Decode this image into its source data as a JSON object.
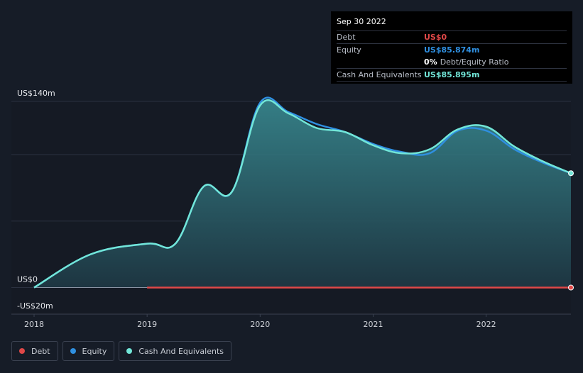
{
  "colors": {
    "debt": "#e04848",
    "equity": "#2f8fe0",
    "cash": "#72e6d8",
    "grid": "#2b3140"
  },
  "tooltip": {
    "date": "Sep 30 2022",
    "debt_label": "Debt",
    "debt_value": "US$0",
    "equity_label": "Equity",
    "equity_value": "US$85.874m",
    "ratio_value": "0%",
    "ratio_label": "Debt/Equity Ratio",
    "cash_label": "Cash And Equivalents",
    "cash_value": "US$85.895m"
  },
  "legend": {
    "debt": "Debt",
    "equity": "Equity",
    "cash": "Cash And Equivalents"
  },
  "chart_data": {
    "type": "area",
    "title": "",
    "xlabel": "",
    "ylabel": "",
    "xlim": [
      2018.0,
      2022.75
    ],
    "ylim": [
      -20,
      140
    ],
    "y_tick_labels": [
      {
        "value": 140,
        "label": "US$140m"
      },
      {
        "value": 0,
        "label": "US$0"
      },
      {
        "value": -20,
        "label": "-US$20m"
      }
    ],
    "x_tick_labels": [
      {
        "value": 2018,
        "label": "2018"
      },
      {
        "value": 2019,
        "label": "2019"
      },
      {
        "value": 2020,
        "label": "2020"
      },
      {
        "value": 2021,
        "label": "2021"
      },
      {
        "value": 2022,
        "label": "2022"
      }
    ],
    "series": [
      {
        "name": "Equity",
        "key": "equity",
        "x": [
          2018.0,
          2018.5,
          2019.0,
          2019.25,
          2019.5,
          2019.75,
          2020.0,
          2020.25,
          2020.5,
          2020.75,
          2021.0,
          2021.25,
          2021.5,
          2021.75,
          2022.0,
          2022.25,
          2022.5,
          2022.75
        ],
        "y": [
          0,
          25,
          33,
          33,
          76,
          72,
          139,
          132,
          123,
          117,
          108,
          102,
          101,
          118,
          118,
          104,
          94,
          86
        ]
      },
      {
        "name": "Cash And Equivalents",
        "key": "cash",
        "x": [
          2018.0,
          2018.5,
          2019.0,
          2019.25,
          2019.5,
          2019.75,
          2020.0,
          2020.25,
          2020.5,
          2020.75,
          2021.0,
          2021.25,
          2021.5,
          2021.75,
          2022.0,
          2022.25,
          2022.5,
          2022.75
        ],
        "y": [
          0,
          25,
          33,
          33,
          76,
          72,
          137,
          131,
          120,
          117,
          107,
          101,
          104,
          119,
          121,
          106,
          95,
          86
        ]
      },
      {
        "name": "Debt",
        "key": "debt",
        "x": [
          2019.0,
          2022.75
        ],
        "y": [
          0,
          0
        ]
      }
    ]
  }
}
